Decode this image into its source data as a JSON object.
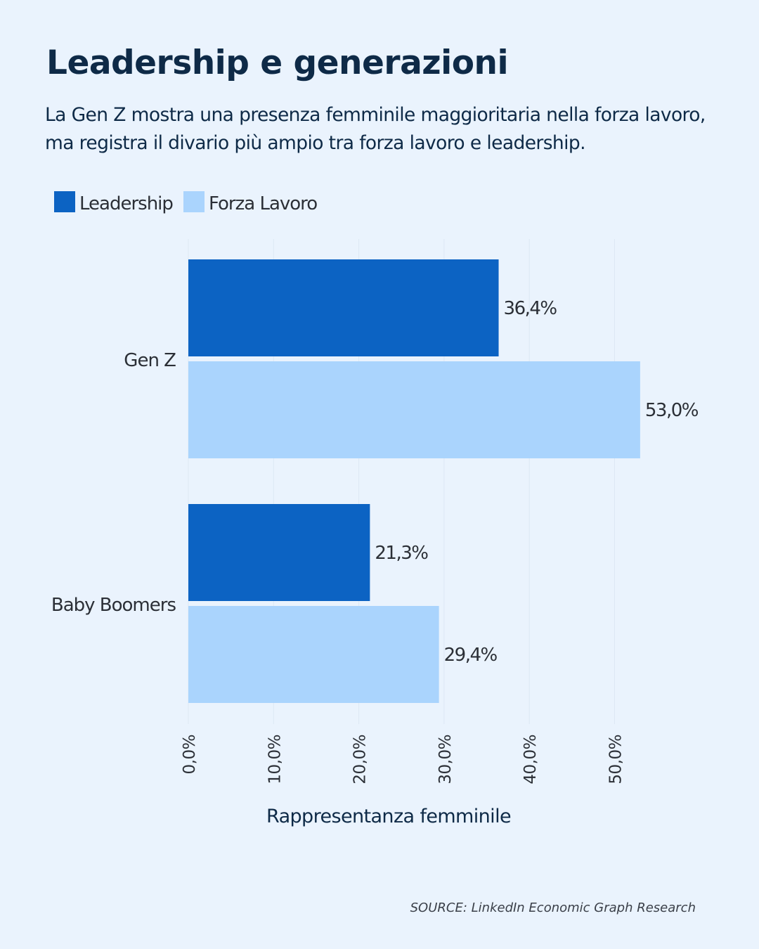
{
  "chart_data": {
    "type": "bar",
    "orientation": "horizontal",
    "title": "Leadership e generazioni",
    "subtitle": "La Gen Z mostra una presenza femminile maggioritaria nella forza lavoro, ma registra il divario più ampio tra forza lavoro e leadership.",
    "categories": [
      "Gen Z",
      "Baby Boomers"
    ],
    "series": [
      {
        "name": "Leadership",
        "values": [
          36.4,
          21.3
        ],
        "labels": [
          "36,4%",
          "21,3%"
        ],
        "color": "#0C63C3"
      },
      {
        "name": "Forza Lavoro",
        "values": [
          53.0,
          29.4
        ],
        "labels": [
          "53,0%",
          "29,4%"
        ],
        "color": "#AAD4FD"
      }
    ],
    "xlabel": "Rappresentanza femminile",
    "ylabel": "",
    "xlim": [
      0,
      53
    ],
    "xticks": [
      0,
      10,
      20,
      30,
      40,
      50
    ],
    "xtick_labels": [
      "0,0%",
      "10,0%",
      "20,0%",
      "30,0%",
      "40,0%",
      "50,0%"
    ],
    "grid": true,
    "legend_position": "top-left"
  },
  "source": "SOURCE: LinkedIn Economic Graph Research",
  "colors": {
    "background": "#EAF3FD",
    "text": "#0E2A47"
  }
}
